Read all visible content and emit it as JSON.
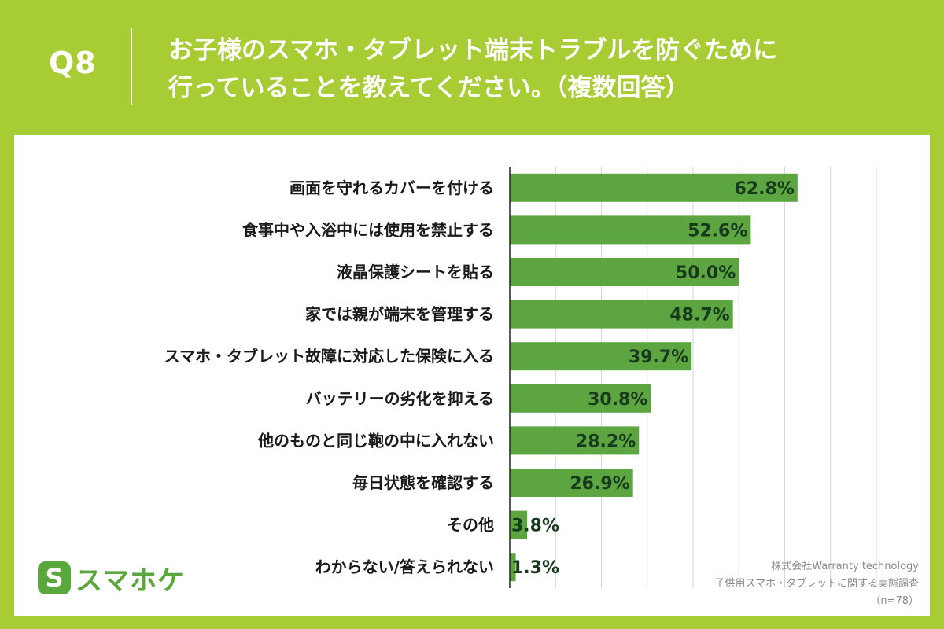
{
  "header": {
    "q_number": "Q8",
    "title_line1": "お子様のスマホ・タブレット端末トラブルを防ぐために",
    "title_line2": "行っていることを教えてください。（複数回答）"
  },
  "brand": {
    "logo_mark": "S",
    "logo_text": "スマホケ",
    "color": "#5aa83c"
  },
  "source": {
    "company": "株式会社Warranty technology",
    "survey": "子供用スマホ・タブレットに関する実態調査",
    "sample": "（n=78）"
  },
  "colors": {
    "background": "#a8cc34",
    "bar": "#5ca541",
    "grid": "#d6d6d6",
    "value_text": "#173a1c"
  },
  "chart_data": {
    "type": "bar",
    "orientation": "horizontal",
    "unit": "%",
    "xlim": [
      0,
      80
    ],
    "grid": true,
    "categories": [
      "画面を守れるカバーを付ける",
      "食事中や入浴中には使用を禁止する",
      "液晶保護シートを貼る",
      "家では親が端末を管理する",
      "スマホ・タブレット故障に対応した保険に入る",
      "バッテリーの劣化を抑える",
      "他のものと同じ鞄の中に入れない",
      "毎日状態を確認する",
      "その他",
      "わからない/答えられない"
    ],
    "values": [
      62.8,
      52.6,
      50.0,
      48.7,
      39.7,
      30.8,
      28.2,
      26.9,
      3.8,
      1.3
    ],
    "value_labels": [
      "62.8%",
      "52.6%",
      "50.0%",
      "48.7%",
      "39.7%",
      "30.8%",
      "28.2%",
      "26.9%",
      "3.8%",
      "1.3%"
    ]
  }
}
